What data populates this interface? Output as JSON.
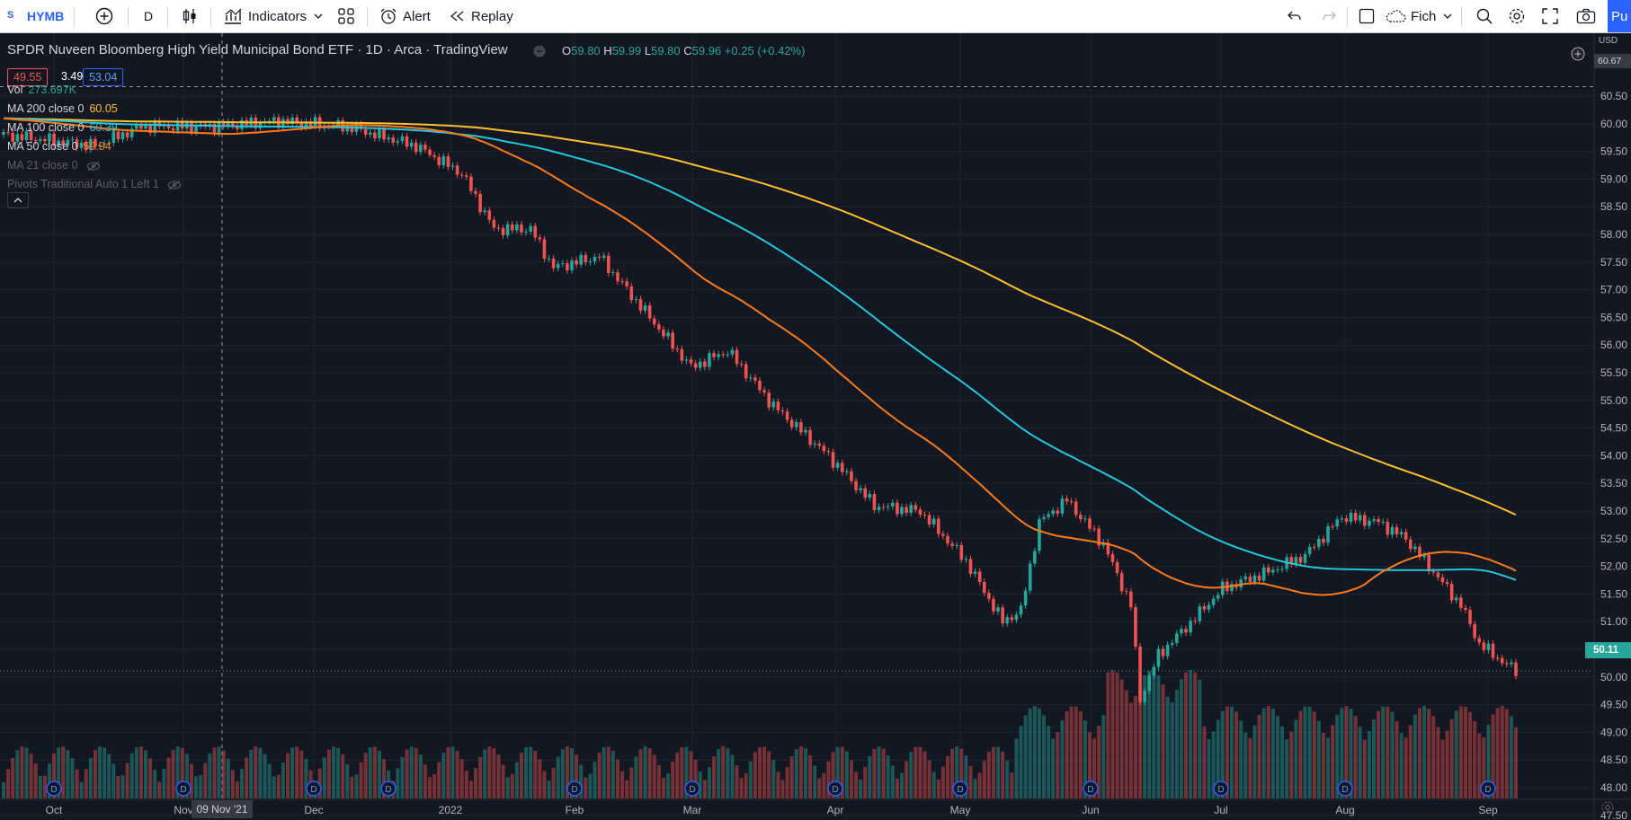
{
  "toolbar": {
    "symbol": "HYMB",
    "symbol_icon": "S",
    "interval": "D",
    "indicators_label": "Indicators",
    "alert_label": "Alert",
    "replay_label": "Replay",
    "layout_label": "Fich",
    "publish_label": "Pu"
  },
  "header": {
    "title": "SPDR Nuveen Bloomberg High Yield Municipal Bond ETF · 1D · Arca · TradingView",
    "ohlc": {
      "o_label": "O",
      "o": "59.80",
      "h_label": "H",
      "h": "59.99",
      "l_label": "L",
      "l": "59.80",
      "c_label": "C",
      "c": "59.96",
      "change": "+0.25 (+0.42%)"
    },
    "bid": "49.55",
    "spread": "3.49",
    "ask": "53.04"
  },
  "indicators": [
    {
      "label": "Vol",
      "value": "273.697K",
      "color": "#26a69a"
    },
    {
      "label": "MA 200 close 0",
      "value": "60.05",
      "color": "#fdbf2d"
    },
    {
      "label": "MA 100 close 0",
      "value": "60.39",
      "color": "#26c6da"
    },
    {
      "label": "MA 50 close 0",
      "value": "59.94",
      "color": "#ff7a1a"
    },
    {
      "label": "MA 21 close 0",
      "value": "",
      "hidden": true
    },
    {
      "label": "Pivots Traditional Auto 1 Left 1",
      "value": "",
      "hidden": true
    }
  ],
  "price_axis": {
    "currency": "USD",
    "labels": [
      "60.50",
      "60.00",
      "59.50",
      "59.00",
      "58.50",
      "58.00",
      "57.50",
      "57.00",
      "56.50",
      "56.00",
      "55.50",
      "55.00",
      "54.50",
      "54.00",
      "53.50",
      "53.00",
      "52.50",
      "52.00",
      "51.50",
      "51.00",
      "50.50",
      "50.00",
      "49.50",
      "49.00",
      "48.50",
      "48.00",
      "47.50"
    ],
    "crosshair_price": "60.67",
    "last_price": "50.11"
  },
  "time_axis": {
    "labels": [
      "Oct",
      "Nov",
      "Dec",
      "2022",
      "Feb",
      "Mar",
      "Apr",
      "May",
      "Jun",
      "Jul",
      "Aug",
      "Sep"
    ],
    "crosshair_date": "09 Nov '21"
  },
  "dividend_marker": "D",
  "colors": {
    "up": "#26a69a",
    "down": "#ef5350",
    "background": "#131722",
    "ma200": "#fdbf2d",
    "ma100": "#26c6da",
    "ma50": "#ff7a1a"
  }
}
